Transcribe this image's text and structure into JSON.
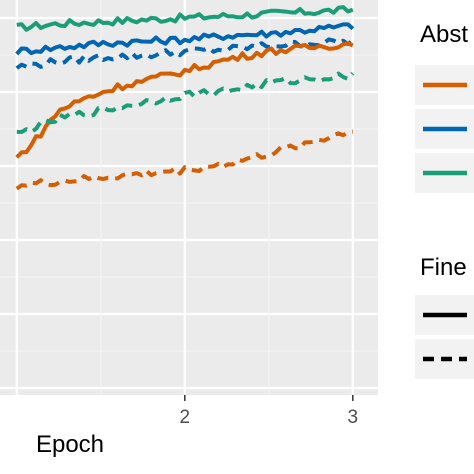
{
  "chart_data": {
    "type": "line",
    "xlabel": "Epoch",
    "ylabel": "",
    "x_ticks": [
      "2",
      "3"
    ],
    "xlim": [
      0.9,
      3.15
    ],
    "ylim": [
      0,
      1
    ],
    "grid": true,
    "legend_placement": "right",
    "legends": [
      {
        "title": "Abst",
        "entries": [
          {
            "color": "#D55E00",
            "linetype": "solid"
          },
          {
            "color": "#0065B3",
            "linetype": "solid"
          },
          {
            "color": "#1B9E77",
            "linetype": "solid"
          }
        ]
      },
      {
        "title": "Fine",
        "entries": [
          {
            "color": "#000000",
            "linetype": "solid"
          },
          {
            "color": "#000000",
            "linetype": "dashed"
          }
        ]
      }
    ],
    "series": [
      {
        "color": "#1B9E77",
        "linetype": "solid",
        "x": [
          1.0,
          1.25,
          1.5,
          1.75,
          2.0,
          2.25,
          2.5,
          2.75,
          3.0
        ],
        "values": [
          0.93,
          0.94,
          0.945,
          0.95,
          0.955,
          0.96,
          0.965,
          0.97,
          0.975
        ]
      },
      {
        "color": "#0065B3",
        "linetype": "solid",
        "x": [
          1.0,
          1.25,
          1.5,
          1.75,
          2.0,
          2.25,
          2.5,
          2.75,
          3.0
        ],
        "values": [
          0.87,
          0.88,
          0.89,
          0.895,
          0.9,
          0.91,
          0.915,
          0.925,
          0.935
        ]
      },
      {
        "color": "#0065B3",
        "linetype": "dashed",
        "x": [
          1.0,
          1.25,
          1.5,
          1.75,
          2.0,
          2.25,
          2.5,
          2.75,
          3.0
        ],
        "values": [
          0.83,
          0.845,
          0.855,
          0.86,
          0.87,
          0.875,
          0.885,
          0.89,
          0.895
        ]
      },
      {
        "color": "#D55E00",
        "linetype": "solid",
        "x": [
          1.0,
          1.1,
          1.25,
          1.4,
          1.6,
          1.8,
          2.0,
          2.25,
          2.5,
          2.75,
          3.0
        ],
        "values": [
          0.6,
          0.64,
          0.72,
          0.75,
          0.78,
          0.8,
          0.82,
          0.85,
          0.87,
          0.88,
          0.89
        ]
      },
      {
        "color": "#1B9E77",
        "linetype": "dashed",
        "x": [
          1.0,
          1.25,
          1.5,
          1.75,
          2.0,
          2.25,
          2.5,
          2.75,
          3.0
        ],
        "values": [
          0.66,
          0.7,
          0.72,
          0.74,
          0.76,
          0.77,
          0.79,
          0.8,
          0.81
        ]
      },
      {
        "color": "#D55E00",
        "linetype": "dashed",
        "x": [
          1.0,
          1.25,
          1.5,
          1.75,
          2.0,
          2.25,
          2.5,
          2.75,
          3.0
        ],
        "values": [
          0.53,
          0.54,
          0.55,
          0.56,
          0.57,
          0.585,
          0.61,
          0.64,
          0.67
        ]
      }
    ]
  }
}
